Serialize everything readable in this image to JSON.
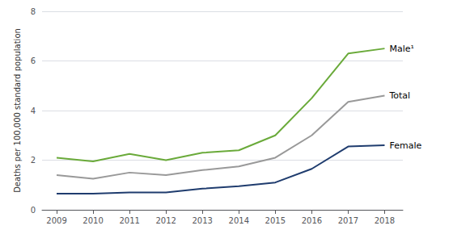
{
  "chart_data": {
    "type": "line",
    "ylabel": "Deaths per 100,000 standard population",
    "x": [
      2009,
      2010,
      2011,
      2012,
      2013,
      2014,
      2015,
      2016,
      2017,
      2018
    ],
    "series": [
      {
        "name": "Male¹",
        "color": "#6aaa3a",
        "values": [
          2.1,
          1.95,
          2.25,
          2.0,
          2.3,
          2.4,
          3.0,
          4.5,
          6.3,
          6.5
        ]
      },
      {
        "name": "Total",
        "color": "#999999",
        "values": [
          1.4,
          1.25,
          1.5,
          1.4,
          1.6,
          1.75,
          2.1,
          3.0,
          4.35,
          4.6
        ]
      },
      {
        "name": "Female",
        "color": "#1f3c6e",
        "values": [
          0.65,
          0.65,
          0.7,
          0.7,
          0.85,
          0.95,
          1.1,
          1.65,
          2.55,
          2.6
        ]
      }
    ],
    "xlim": [
      2008.6,
      2018.5
    ],
    "xticks": [
      2009,
      2010,
      2011,
      2012,
      2013,
      2014,
      2015,
      2016,
      2017,
      2018
    ],
    "ylim": [
      0,
      8
    ],
    "yticks": [
      0,
      2,
      4,
      6,
      8
    ],
    "grid": true
  }
}
